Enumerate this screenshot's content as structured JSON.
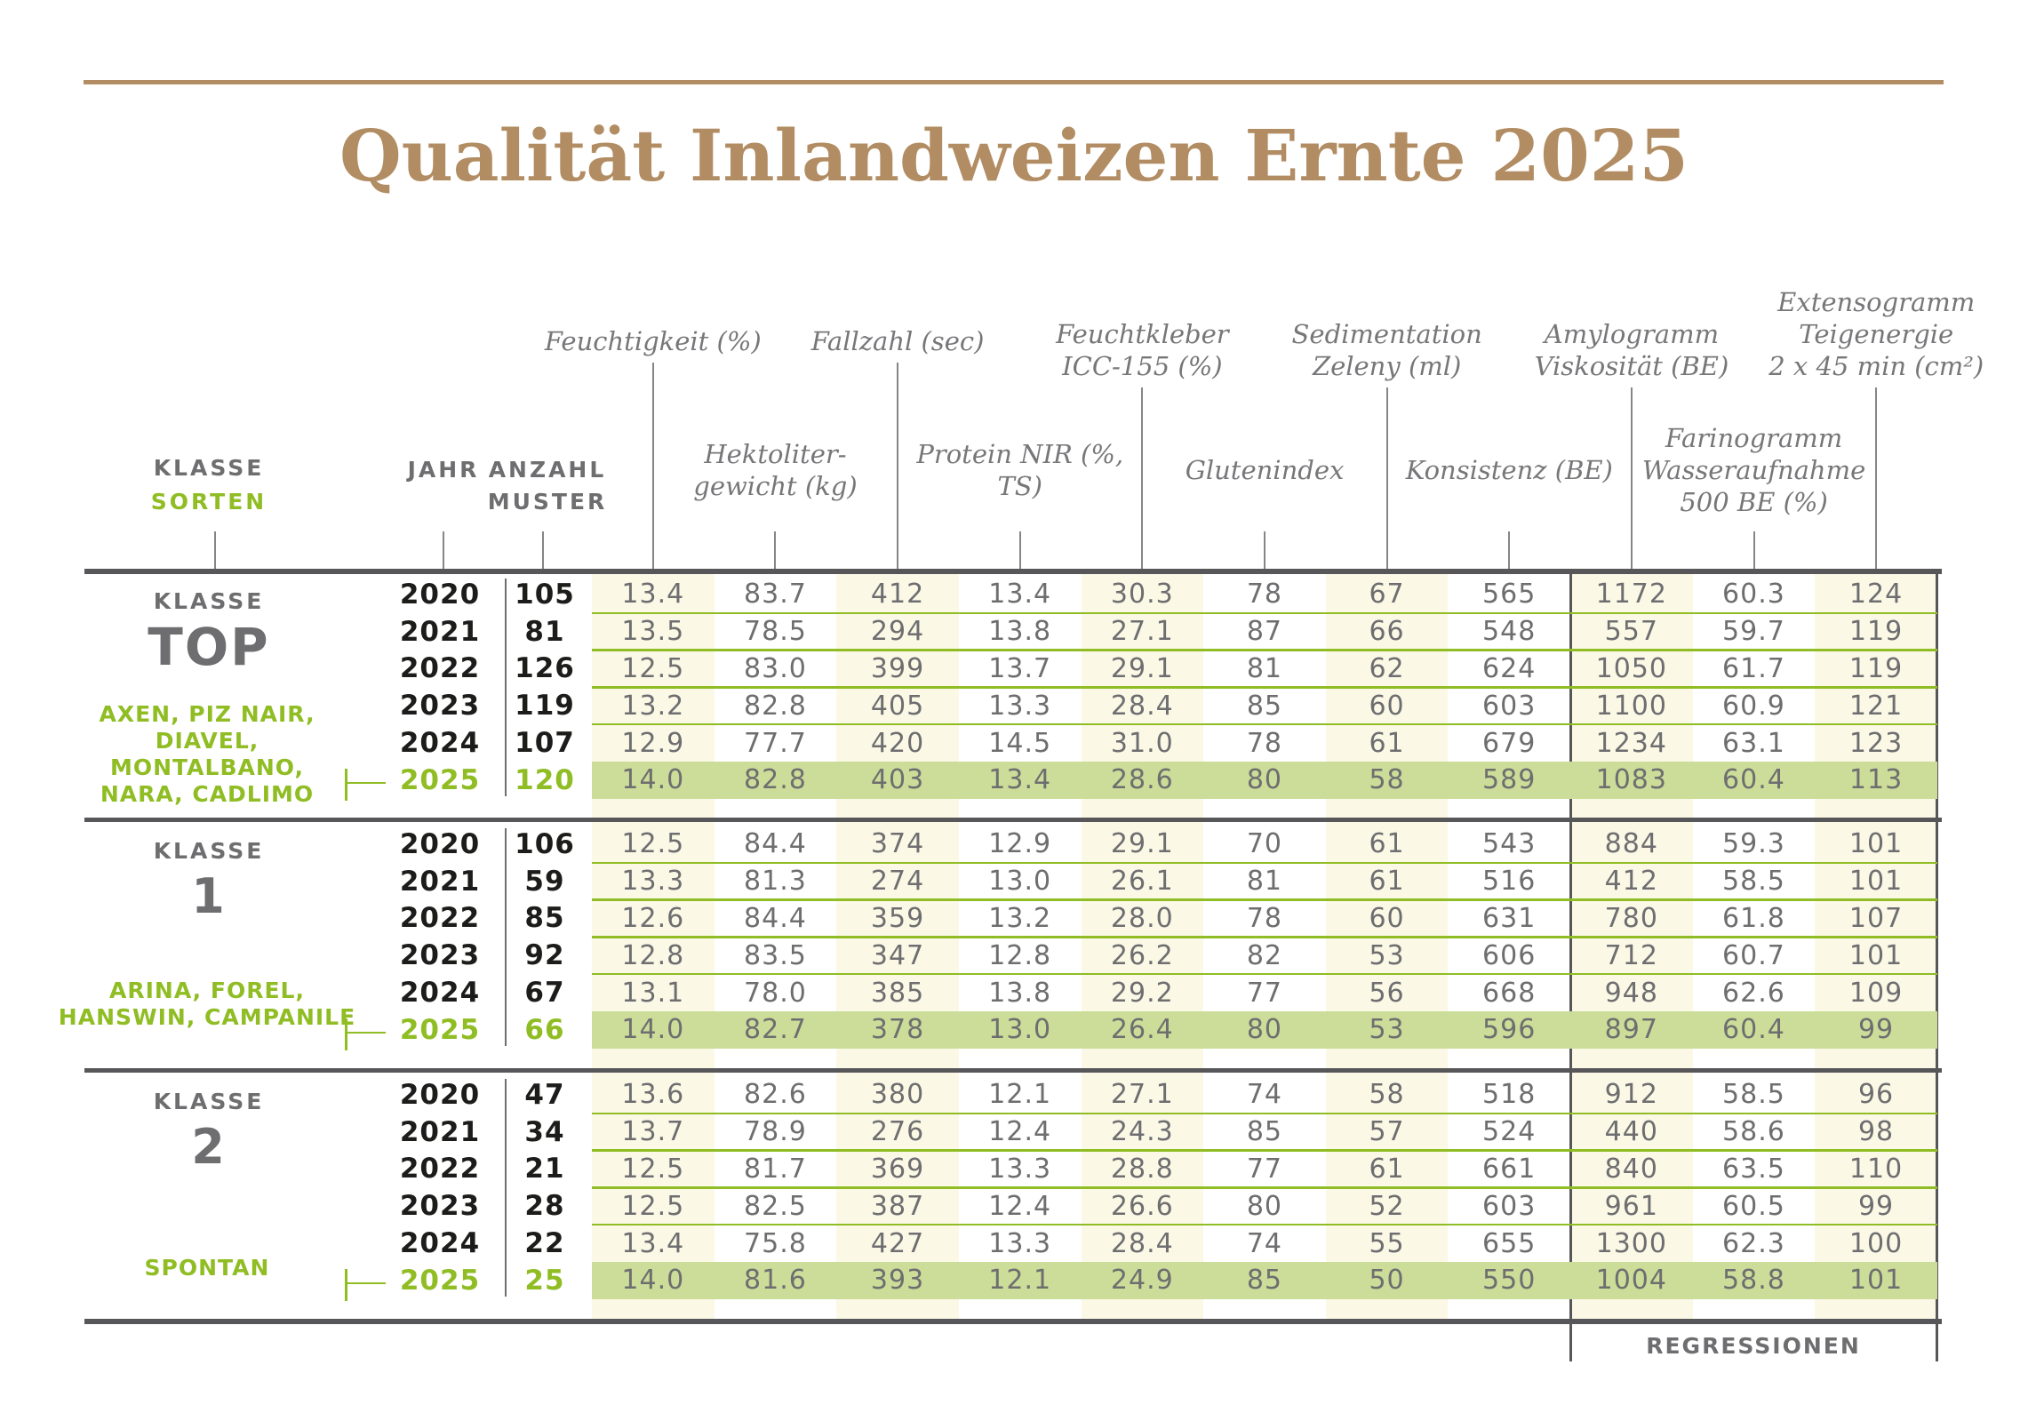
{
  "page": {
    "title": "Qualität Inlandweizen Ernte 2025"
  },
  "colors": {
    "tan": "#b28d63",
    "dark_border": "#57575a",
    "text_gray": "#6e6e70",
    "header_gray": "#77777a",
    "green": "#8fbd23",
    "green_row_bg": "#cbdd98",
    "cream": "#fbf8e6",
    "year_black": "#1c1c1a",
    "line_gray": "#85858a"
  },
  "left_header": {
    "klasse": "KLASSE",
    "sorten": "SORTEN",
    "jahr": "JAHR",
    "anzahl": "ANZAHL",
    "muster": "MUSTER"
  },
  "columns": [
    {
      "i": 0,
      "row": 1,
      "label": "Feuchtigkeit (%)"
    },
    {
      "i": 1,
      "row": 2,
      "label": "Hektoliter-\ngewicht (kg)"
    },
    {
      "i": 2,
      "row": 1,
      "label": "Fallzahl (sec)"
    },
    {
      "i": 3,
      "row": 2,
      "label": "Protein NIR (%,\nTS)"
    },
    {
      "i": 4,
      "row": 1,
      "label": "Feuchtkleber\nICC-155 (%)"
    },
    {
      "i": 5,
      "row": 2,
      "label": "Glutenindex"
    },
    {
      "i": 6,
      "row": 1,
      "label": "Sedimentation\nZeleny (ml)"
    },
    {
      "i": 7,
      "row": 2,
      "label": "Konsistenz (BE)"
    },
    {
      "i": 8,
      "row": 1,
      "label": "Amylogramm\nViskosität (BE)"
    },
    {
      "i": 9,
      "row": 2,
      "label": "Farinogramm\nWasseraufnahme\n500 BE (%)"
    },
    {
      "i": 10,
      "row": 1,
      "label": "Extensogramm\nTeigenergie\n2 x 45 min (cm²)"
    }
  ],
  "blocks": [
    {
      "klasse_label": "KLASSE",
      "name": "TOP",
      "varieties": "AXEN, PIZ NAIR,\nDIAVEL, MONTALBANO,\nNARA, CADLIMO",
      "rows": [
        {
          "jahr": "2020",
          "anzahl": "105",
          "highlight": false,
          "values": [
            "13.4",
            "83.7",
            "412",
            "13.4",
            "30.3",
            "78",
            "67",
            "565",
            "1172",
            "60.3",
            "124"
          ]
        },
        {
          "jahr": "2021",
          "anzahl": "81",
          "highlight": false,
          "values": [
            "13.5",
            "78.5",
            "294",
            "13.8",
            "27.1",
            "87",
            "66",
            "548",
            "557",
            "59.7",
            "119"
          ]
        },
        {
          "jahr": "2022",
          "anzahl": "126",
          "highlight": false,
          "values": [
            "12.5",
            "83.0",
            "399",
            "13.7",
            "29.1",
            "81",
            "62",
            "624",
            "1050",
            "61.7",
            "119"
          ]
        },
        {
          "jahr": "2023",
          "anzahl": "119",
          "highlight": false,
          "values": [
            "13.2",
            "82.8",
            "405",
            "13.3",
            "28.4",
            "85",
            "60",
            "603",
            "1100",
            "60.9",
            "121"
          ]
        },
        {
          "jahr": "2024",
          "anzahl": "107",
          "highlight": false,
          "values": [
            "12.9",
            "77.7",
            "420",
            "14.5",
            "31.0",
            "78",
            "61",
            "679",
            "1234",
            "63.1",
            "123"
          ]
        },
        {
          "jahr": "2025",
          "anzahl": "120",
          "highlight": true,
          "values": [
            "14.0",
            "82.8",
            "403",
            "13.4",
            "28.6",
            "80",
            "58",
            "589",
            "1083",
            "60.4",
            "113"
          ]
        }
      ]
    },
    {
      "klasse_label": "KLASSE",
      "name": "1",
      "varieties": "ARINA, FOREL,\nHANSWIN, CAMPANILE",
      "rows": [
        {
          "jahr": "2020",
          "anzahl": "106",
          "highlight": false,
          "values": [
            "12.5",
            "84.4",
            "374",
            "12.9",
            "29.1",
            "70",
            "61",
            "543",
            "884",
            "59.3",
            "101"
          ]
        },
        {
          "jahr": "2021",
          "anzahl": "59",
          "highlight": false,
          "values": [
            "13.3",
            "81.3",
            "274",
            "13.0",
            "26.1",
            "81",
            "61",
            "516",
            "412",
            "58.5",
            "101"
          ]
        },
        {
          "jahr": "2022",
          "anzahl": "85",
          "highlight": false,
          "values": [
            "12.6",
            "84.4",
            "359",
            "13.2",
            "28.0",
            "78",
            "60",
            "631",
            "780",
            "61.8",
            "107"
          ]
        },
        {
          "jahr": "2023",
          "anzahl": "92",
          "highlight": false,
          "values": [
            "12.8",
            "83.5",
            "347",
            "12.8",
            "26.2",
            "82",
            "53",
            "606",
            "712",
            "60.7",
            "101"
          ]
        },
        {
          "jahr": "2024",
          "anzahl": "67",
          "highlight": false,
          "values": [
            "13.1",
            "78.0",
            "385",
            "13.8",
            "29.2",
            "77",
            "56",
            "668",
            "948",
            "62.6",
            "109"
          ]
        },
        {
          "jahr": "2025",
          "anzahl": "66",
          "highlight": true,
          "values": [
            "14.0",
            "82.7",
            "378",
            "13.0",
            "26.4",
            "80",
            "53",
            "596",
            "897",
            "60.4",
            "99"
          ]
        }
      ]
    },
    {
      "klasse_label": "KLASSE",
      "name": "2",
      "varieties": "SPONTAN",
      "rows": [
        {
          "jahr": "2020",
          "anzahl": "47",
          "highlight": false,
          "values": [
            "13.6",
            "82.6",
            "380",
            "12.1",
            "27.1",
            "74",
            "58",
            "518",
            "912",
            "58.5",
            "96"
          ]
        },
        {
          "jahr": "2021",
          "anzahl": "34",
          "highlight": false,
          "values": [
            "13.7",
            "78.9",
            "276",
            "12.4",
            "24.3",
            "85",
            "57",
            "524",
            "440",
            "58.6",
            "98"
          ]
        },
        {
          "jahr": "2022",
          "anzahl": "21",
          "highlight": false,
          "values": [
            "12.5",
            "81.7",
            "369",
            "13.3",
            "28.8",
            "77",
            "61",
            "661",
            "840",
            "63.5",
            "110"
          ]
        },
        {
          "jahr": "2023",
          "anzahl": "28",
          "highlight": false,
          "values": [
            "12.5",
            "82.5",
            "387",
            "12.4",
            "26.6",
            "80",
            "52",
            "603",
            "961",
            "60.5",
            "99"
          ]
        },
        {
          "jahr": "2024",
          "anzahl": "22",
          "highlight": false,
          "values": [
            "13.4",
            "75.8",
            "427",
            "13.3",
            "28.4",
            "74",
            "55",
            "655",
            "1300",
            "62.3",
            "100"
          ]
        },
        {
          "jahr": "2025",
          "anzahl": "25",
          "highlight": true,
          "values": [
            "14.0",
            "81.6",
            "393",
            "12.1",
            "24.9",
            "85",
            "50",
            "550",
            "1004",
            "58.8",
            "101"
          ]
        }
      ]
    }
  ],
  "footer": {
    "regressionen": "REGRESSIONEN"
  }
}
